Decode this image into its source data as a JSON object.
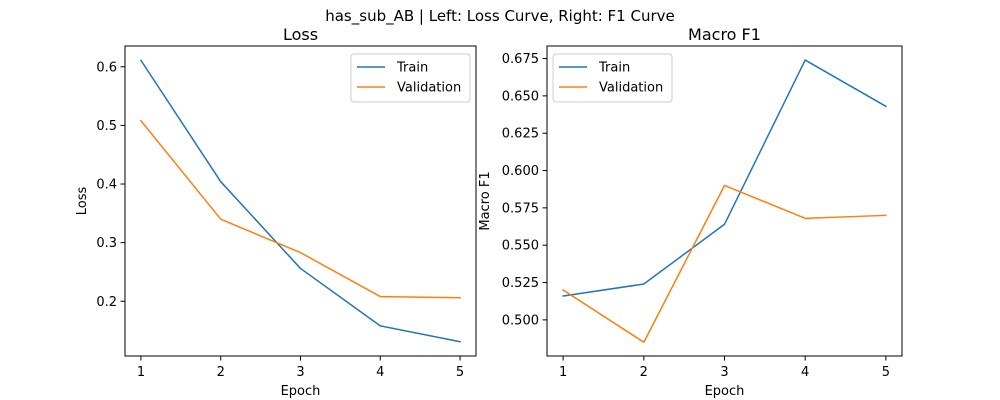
{
  "figure": {
    "suptitle": "has_sub_AB | Left: Loss Curve, Right: F1 Curve"
  },
  "chart_data": [
    {
      "type": "line",
      "title": "Loss",
      "xlabel": "Epoch",
      "ylabel": "Loss",
      "x": [
        1,
        2,
        3,
        4,
        5
      ],
      "xticks": [
        1,
        2,
        3,
        4,
        5
      ],
      "xtick_labels": [
        "1",
        "2",
        "3",
        "4",
        "5"
      ],
      "xlim": [
        0.8,
        5.2
      ],
      "yticks": [
        0.2,
        0.3,
        0.4,
        0.5,
        0.6
      ],
      "ytick_labels": [
        "0.2",
        "0.3",
        "0.4",
        "0.5",
        "0.6"
      ],
      "ylim": [
        0.1066,
        0.6355
      ],
      "legend_position": "top-right",
      "grid": false,
      "series": [
        {
          "name": "Train",
          "color": "#1f77b4",
          "values": [
            0.611,
            0.404,
            0.256,
            0.158,
            0.131
          ]
        },
        {
          "name": "Validation",
          "color": "#ff7f0e",
          "values": [
            0.508,
            0.34,
            0.283,
            0.208,
            0.206
          ]
        }
      ]
    },
    {
      "type": "line",
      "title": "Macro F1",
      "xlabel": "Epoch",
      "ylabel": "Macro F1",
      "x": [
        1,
        2,
        3,
        4,
        5
      ],
      "xticks": [
        1,
        2,
        3,
        4,
        5
      ],
      "xtick_labels": [
        "1",
        "2",
        "3",
        "4",
        "5"
      ],
      "xlim": [
        0.8,
        5.2
      ],
      "yticks": [
        0.5,
        0.525,
        0.55,
        0.575,
        0.6,
        0.625,
        0.65,
        0.675
      ],
      "ytick_labels": [
        "0.500",
        "0.525",
        "0.550",
        "0.575",
        "0.600",
        "0.625",
        "0.650",
        "0.675"
      ],
      "ylim": [
        0.4758,
        0.6834
      ],
      "legend_position": "top-left",
      "grid": false,
      "series": [
        {
          "name": "Train",
          "color": "#1f77b4",
          "values": [
            0.516,
            0.524,
            0.564,
            0.674,
            0.643
          ]
        },
        {
          "name": "Validation",
          "color": "#ff7f0e",
          "values": [
            0.52,
            0.485,
            0.59,
            0.568,
            0.57
          ]
        }
      ]
    }
  ]
}
